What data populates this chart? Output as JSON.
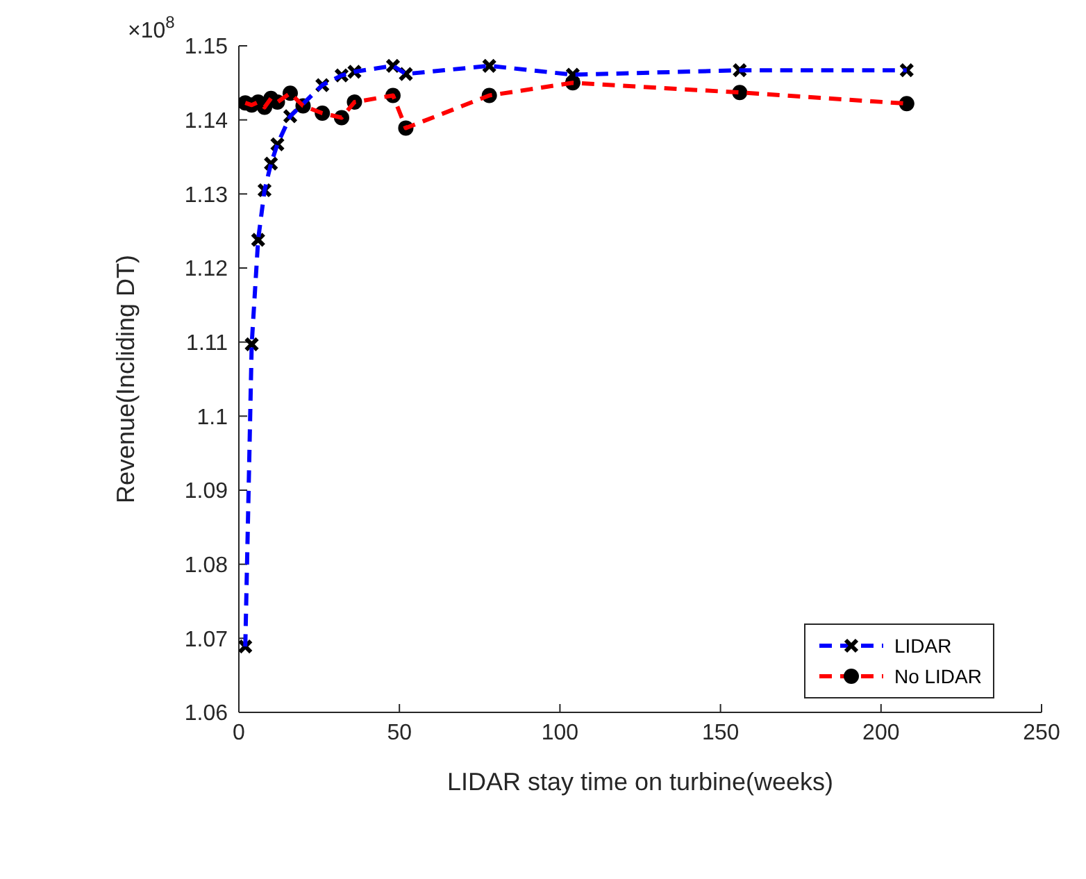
{
  "chart_data": {
    "type": "line",
    "xlabel": "LIDAR stay time on turbine(weeks)",
    "ylabel": "Revenue(Incliding DT)",
    "annotations": [
      "×10$^{8}$"
    ],
    "xlim": [
      0,
      250
    ],
    "xticks": [
      0,
      50,
      100,
      150,
      200,
      250
    ],
    "ylim": [
      1.06,
      1.15
    ],
    "yticks": [
      1.06,
      1.07,
      1.08,
      1.09,
      1.1,
      1.11,
      1.12,
      1.13,
      1.14,
      1.15
    ],
    "grid": false,
    "legend": "bottom right",
    "line_style": "dashed",
    "series": [
      {
        "name": "LIDAR",
        "color": "#0000ff",
        "marker": "cross",
        "x": [
          2,
          4,
          6,
          8,
          10,
          12,
          16,
          26,
          32,
          36,
          48,
          52,
          78,
          104,
          156,
          208
        ],
        "values": [
          1.0689,
          1.1097,
          1.1238,
          1.1305,
          1.1341,
          1.1367,
          1.1405,
          1.1447,
          1.146,
          1.1465,
          1.1473,
          1.1462,
          1.1473,
          1.1461,
          1.1467,
          1.1467
        ]
      },
      {
        "name": "No LIDAR",
        "color": "#ff0000",
        "marker": "circle",
        "x": [
          2,
          4,
          6,
          8,
          10,
          12,
          16,
          20,
          26,
          32,
          36,
          48,
          52,
          78,
          104,
          156,
          208
        ],
        "values": [
          1.1423,
          1.142,
          1.1424,
          1.1417,
          1.1429,
          1.1424,
          1.1436,
          1.1419,
          1.1409,
          1.1403,
          1.1424,
          1.1433,
          1.1389,
          1.1433,
          1.145,
          1.1437,
          1.1422
        ]
      }
    ]
  }
}
